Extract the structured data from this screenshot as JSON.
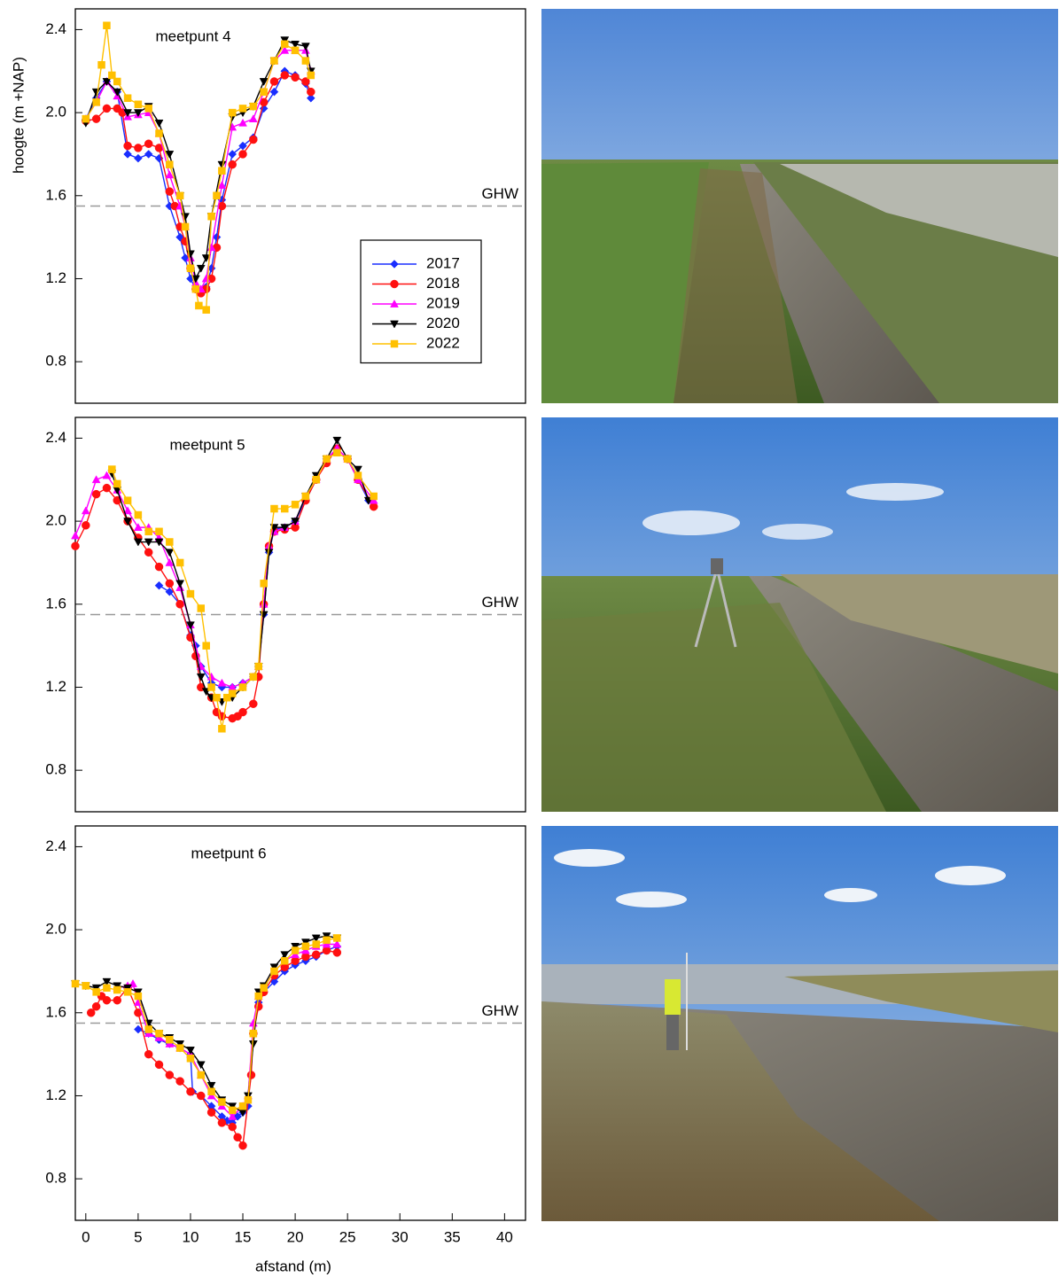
{
  "chart_data": [
    {
      "type": "line",
      "title": "meetpunt 4",
      "ylabel": "hoogte  (m +NAP)",
      "xlim": [
        -1,
        42
      ],
      "ylim": [
        0.6,
        2.5
      ],
      "yticks": [
        0.8,
        1.2,
        1.6,
        {
          "value": 2,
          "label": "2.0"
        },
        2.4
      ],
      "hline": {
        "value": 1.55,
        "label": "GHW",
        "color": "#999999"
      },
      "legend": "lower-right",
      "series": [
        {
          "name": "2017",
          "color": "#1a2eff",
          "marker": "diamond",
          "x": [
            0,
            1,
            2,
            3,
            4,
            5,
            6,
            7,
            8,
            9,
            9.5,
            10,
            10.5,
            11,
            11.5,
            12,
            12.5,
            13,
            14,
            15,
            16,
            17,
            18,
            19,
            20,
            21,
            21.5
          ],
          "values": [
            1.97,
            2.07,
            2.15,
            2.1,
            1.8,
            1.78,
            1.8,
            1.78,
            1.55,
            1.4,
            1.3,
            1.2,
            1.15,
            1.14,
            1.16,
            1.25,
            1.4,
            1.58,
            1.8,
            1.84,
            1.88,
            2.02,
            2.1,
            2.2,
            2.18,
            2.14,
            2.07
          ]
        },
        {
          "name": "2018",
          "color": "#ff1010",
          "marker": "circle",
          "x": [
            0,
            1,
            2,
            3,
            3.5,
            4,
            5,
            6,
            7,
            8,
            8.5,
            9,
            9.5,
            10,
            10.5,
            11,
            11.5,
            12,
            12.5,
            13,
            14,
            15,
            16,
            17,
            18,
            19,
            20,
            21,
            21.5
          ],
          "values": [
            1.96,
            1.97,
            2.02,
            2.02,
            2.0,
            1.84,
            1.83,
            1.85,
            1.83,
            1.62,
            1.55,
            1.45,
            1.38,
            1.25,
            1.15,
            1.13,
            1.15,
            1.2,
            1.35,
            1.55,
            1.75,
            1.8,
            1.87,
            2.05,
            2.15,
            2.18,
            2.17,
            2.15,
            2.1
          ]
        },
        {
          "name": "2019",
          "color": "#ff00ff",
          "marker": "triangle-up",
          "x": [
            0,
            1,
            2,
            3,
            4,
            5,
            6,
            7,
            8,
            9,
            9.5,
            10,
            10.5,
            11,
            11.5,
            12,
            13,
            14,
            15,
            16,
            17,
            18,
            19,
            20,
            21,
            21.5
          ],
          "values": [
            1.97,
            2.05,
            2.15,
            2.08,
            1.98,
            1.99,
            2.0,
            1.9,
            1.7,
            1.55,
            1.45,
            1.3,
            1.18,
            1.15,
            1.2,
            1.35,
            1.65,
            1.93,
            1.95,
            1.97,
            2.1,
            2.25,
            2.3,
            2.3,
            2.3,
            2.2
          ]
        },
        {
          "name": "2020",
          "color": "#000000",
          "marker": "triangle-down",
          "x": [
            0,
            1,
            2,
            3,
            4,
            5,
            6,
            7,
            8,
            9,
            9.5,
            10,
            10.5,
            11,
            11.5,
            12,
            13,
            14,
            15,
            16,
            17,
            18,
            19,
            20,
            21,
            21.5
          ],
          "values": [
            1.95,
            2.1,
            2.15,
            2.1,
            2.0,
            2.0,
            2.03,
            1.95,
            1.8,
            1.6,
            1.5,
            1.32,
            1.2,
            1.25,
            1.3,
            1.5,
            1.75,
            1.98,
            2.0,
            2.03,
            2.15,
            2.25,
            2.35,
            2.33,
            2.32,
            2.2
          ]
        },
        {
          "name": "2022",
          "color": "#ffc000",
          "marker": "square",
          "x": [
            0,
            1,
            1.5,
            2,
            2.5,
            3,
            4,
            5,
            6,
            7,
            8,
            9,
            9.5,
            10,
            10.5,
            10.8,
            11.5,
            12,
            12.5,
            13,
            14,
            15,
            16,
            17,
            18,
            19,
            20,
            21,
            21.5
          ],
          "values": [
            1.97,
            2.05,
            2.23,
            2.42,
            2.18,
            2.15,
            2.07,
            2.04,
            2.02,
            1.9,
            1.75,
            1.6,
            1.45,
            1.25,
            1.15,
            1.07,
            1.05,
            1.5,
            1.6,
            1.72,
            2.0,
            2.02,
            2.03,
            2.1,
            2.25,
            2.33,
            2.3,
            2.25,
            2.18
          ]
        }
      ]
    },
    {
      "type": "line",
      "title": "meetpunt 5",
      "xlim": [
        -1,
        42
      ],
      "ylim": [
        0.6,
        2.5
      ],
      "yticks": [
        0.8,
        1.2,
        1.6,
        {
          "value": 2,
          "label": "2.0"
        },
        2.4
      ],
      "hline": {
        "value": 1.55,
        "label": "GHW",
        "color": "#999999"
      },
      "series": [
        {
          "color": "#1a2eff",
          "marker": "diamond",
          "x": [
            7,
            8,
            9,
            10,
            10.5,
            11,
            12,
            13,
            14,
            15,
            16,
            16.5,
            17,
            17.5,
            18,
            19,
            20,
            21,
            22,
            23,
            24,
            25,
            26,
            27
          ],
          "values": [
            1.69,
            1.66,
            1.6,
            1.45,
            1.4,
            1.3,
            1.22,
            1.2,
            1.2,
            1.22,
            1.25,
            1.3,
            1.55,
            1.85,
            1.96,
            1.97,
            2.0,
            2.1,
            2.2,
            2.3,
            2.35,
            2.3,
            2.2,
            2.1
          ]
        },
        {
          "color": "#ff1010",
          "marker": "circle",
          "x": [
            -1,
            0,
            1,
            2,
            3,
            4,
            5,
            6,
            7,
            8,
            9,
            10,
            10.5,
            11,
            12,
            12.5,
            13,
            14,
            14.5,
            15,
            16,
            16.5,
            17,
            17.5,
            18,
            19,
            20,
            21,
            22,
            23,
            24,
            25,
            26,
            27.5
          ],
          "values": [
            1.88,
            1.98,
            2.13,
            2.16,
            2.1,
            2.0,
            1.92,
            1.85,
            1.78,
            1.7,
            1.6,
            1.44,
            1.35,
            1.2,
            1.15,
            1.08,
            1.06,
            1.05,
            1.06,
            1.08,
            1.12,
            1.25,
            1.6,
            1.88,
            1.95,
            1.96,
            1.97,
            2.1,
            2.2,
            2.28,
            2.35,
            2.3,
            2.2,
            2.07
          ]
        },
        {
          "color": "#ff00ff",
          "marker": "triangle-up",
          "x": [
            -1,
            0,
            1,
            2,
            3,
            4,
            5,
            6,
            7,
            8,
            9,
            10,
            11,
            12,
            13,
            14,
            15,
            16,
            16.5,
            17,
            17.5,
            18,
            19,
            20,
            21,
            22,
            23,
            24,
            25,
            26,
            27.5
          ],
          "values": [
            1.93,
            2.05,
            2.2,
            2.22,
            2.15,
            2.05,
            1.97,
            1.97,
            1.92,
            1.8,
            1.68,
            1.5,
            1.3,
            1.25,
            1.22,
            1.2,
            1.22,
            1.25,
            1.3,
            1.6,
            1.88,
            1.95,
            1.97,
            2.0,
            2.12,
            2.2,
            2.3,
            2.35,
            2.3,
            2.2,
            2.1
          ]
        },
        {
          "color": "#000000",
          "marker": "triangle-down",
          "x": [
            2.5,
            3,
            4,
            5,
            6,
            7,
            8,
            9,
            10,
            11,
            11.5,
            12,
            13,
            14,
            15,
            16,
            16.5,
            17,
            17.5,
            18,
            19,
            20,
            21,
            22,
            23,
            24,
            25,
            26,
            27
          ],
          "values": [
            2.23,
            2.15,
            2.0,
            1.9,
            1.9,
            1.9,
            1.85,
            1.7,
            1.5,
            1.25,
            1.18,
            1.15,
            1.13,
            1.15,
            1.2,
            1.25,
            1.3,
            1.55,
            1.85,
            1.97,
            1.97,
            2.0,
            2.12,
            2.22,
            2.3,
            2.39,
            2.3,
            2.25,
            2.1
          ]
        },
        {
          "color": "#ffc000",
          "marker": "square",
          "x": [
            2.5,
            3,
            4,
            5,
            6,
            7,
            8,
            9,
            10,
            11,
            11.5,
            12,
            12.5,
            13,
            13.5,
            14,
            15,
            16,
            16.5,
            17,
            18,
            19,
            20,
            21,
            22,
            23,
            24,
            25,
            26,
            27.5
          ],
          "values": [
            2.25,
            2.18,
            2.1,
            2.03,
            1.95,
            1.95,
            1.9,
            1.8,
            1.65,
            1.58,
            1.4,
            1.2,
            1.15,
            1.0,
            1.15,
            1.17,
            1.2,
            1.25,
            1.3,
            1.7,
            2.06,
            2.06,
            2.08,
            2.12,
            2.2,
            2.3,
            2.33,
            2.3,
            2.22,
            2.12
          ]
        }
      ]
    },
    {
      "type": "line",
      "title": "meetpunt 6",
      "xlabel": "afstand  (m)",
      "xlim": [
        -1,
        42
      ],
      "ylim": [
        0.6,
        2.5
      ],
      "xticks": [
        0,
        5,
        10,
        15,
        20,
        25,
        30,
        35,
        40
      ],
      "yticks": [
        0.8,
        1.2,
        1.6,
        {
          "value": 2,
          "label": "2.0"
        },
        2.4
      ],
      "hline": {
        "value": 1.55,
        "label": "GHW",
        "color": "#999999"
      },
      "series": [
        {
          "color": "#1a2eff",
          "marker": "diamond",
          "x": [
            5,
            6,
            7,
            8,
            9,
            10,
            10.2,
            11,
            12,
            13,
            13.5,
            14,
            14.5,
            15,
            15.5,
            16,
            16.5,
            17,
            18,
            19,
            20,
            21,
            22,
            23,
            24
          ],
          "values": [
            1.52,
            1.5,
            1.47,
            1.45,
            1.43,
            1.4,
            1.22,
            1.2,
            1.15,
            1.1,
            1.08,
            1.07,
            1.1,
            1.12,
            1.15,
            1.5,
            1.65,
            1.7,
            1.75,
            1.8,
            1.83,
            1.85,
            1.87,
            1.9,
            1.92
          ]
        },
        {
          "color": "#ff1010",
          "marker": "circle",
          "x": [
            0.5,
            1,
            1.5,
            2,
            3,
            4,
            5,
            6,
            7,
            8,
            9,
            10,
            11,
            12,
            13,
            14,
            14.5,
            15,
            15.8,
            16,
            16.5,
            17,
            18,
            19,
            20,
            21,
            22,
            23,
            24
          ],
          "values": [
            1.6,
            1.63,
            1.68,
            1.66,
            1.66,
            1.72,
            1.6,
            1.4,
            1.35,
            1.3,
            1.27,
            1.22,
            1.2,
            1.12,
            1.07,
            1.05,
            1.0,
            0.96,
            1.3,
            1.5,
            1.63,
            1.7,
            1.78,
            1.82,
            1.85,
            1.87,
            1.88,
            1.9,
            1.89
          ]
        },
        {
          "color": "#ff00ff",
          "marker": "triangle-up",
          "x": [
            3,
            4,
            4.5,
            5,
            6,
            7,
            8,
            9,
            10,
            11,
            12,
            13,
            14,
            15,
            15.5,
            16,
            16.5,
            17,
            18,
            19,
            20,
            21,
            22,
            23,
            24
          ],
          "values": [
            1.72,
            1.73,
            1.74,
            1.65,
            1.5,
            1.48,
            1.45,
            1.43,
            1.4,
            1.3,
            1.2,
            1.15,
            1.1,
            1.15,
            1.2,
            1.55,
            1.68,
            1.72,
            1.8,
            1.85,
            1.88,
            1.9,
            1.92,
            1.93,
            1.93
          ]
        },
        {
          "color": "#000000",
          "marker": "triangle-down",
          "x": [
            -1,
            0,
            1,
            2,
            3,
            4,
            5,
            6,
            7,
            8,
            9,
            10,
            11,
            12,
            13,
            14,
            15,
            15.5,
            16,
            16.5,
            17,
            18,
            19,
            20,
            21,
            22,
            23,
            24
          ],
          "values": [
            1.74,
            1.73,
            1.72,
            1.75,
            1.73,
            1.72,
            1.7,
            1.55,
            1.5,
            1.48,
            1.45,
            1.42,
            1.35,
            1.25,
            1.18,
            1.15,
            1.12,
            1.2,
            1.45,
            1.7,
            1.73,
            1.82,
            1.88,
            1.92,
            1.94,
            1.96,
            1.97,
            1.96
          ]
        },
        {
          "color": "#ffc000",
          "marker": "square",
          "x": [
            -1,
            0,
            1,
            2,
            3,
            4,
            5,
            6,
            7,
            8,
            9,
            10,
            11,
            12,
            13,
            14,
            15,
            15.5,
            16,
            16.5,
            17,
            18,
            19,
            20,
            21,
            22,
            23,
            24
          ],
          "values": [
            1.74,
            1.73,
            1.7,
            1.72,
            1.71,
            1.7,
            1.68,
            1.52,
            1.5,
            1.47,
            1.43,
            1.38,
            1.3,
            1.22,
            1.17,
            1.13,
            1.15,
            1.18,
            1.5,
            1.68,
            1.72,
            1.8,
            1.85,
            1.9,
            1.92,
            1.93,
            1.95,
            1.96
          ]
        }
      ]
    }
  ]
}
